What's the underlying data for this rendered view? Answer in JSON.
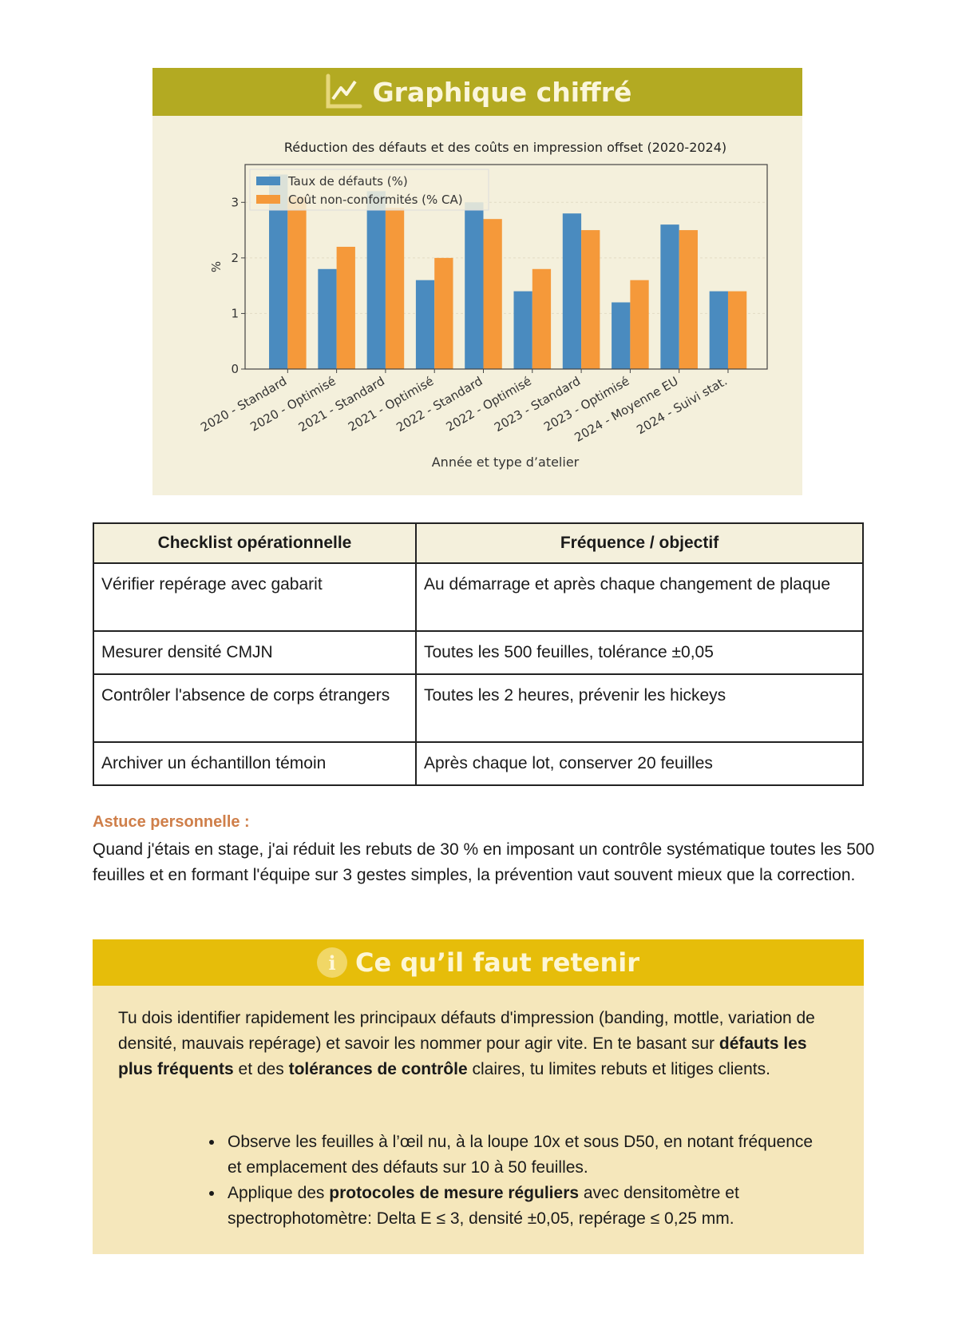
{
  "chart_section": {
    "header": "Graphique chiffré",
    "header_icon": "line-chart-icon",
    "header_color": "#b3aa22"
  },
  "chart_data": {
    "type": "bar",
    "title": "Réduction des défauts et des coûts en impression offset (2020-2024)",
    "xlabel": "Année et type d’atelier",
    "ylabel": "%",
    "ylim": [
      0,
      3.68
    ],
    "yticks": [
      "0",
      "1",
      "2",
      "3"
    ],
    "grid": true,
    "legend_position": "top-left",
    "categories": [
      "2020 - Standard",
      "2020 - Optimisé",
      "2021 - Standard",
      "2021 - Optimisé",
      "2022 - Standard",
      "2022 - Optimisé",
      "2023 - Standard",
      "2023 - Optimisé",
      "2024 - Moyenne EU",
      "2024 - Suivi stat."
    ],
    "series": [
      {
        "name": "Taux de défauts (%)",
        "color": "#4a8bbf",
        "values": [
          3.5,
          1.8,
          3.2,
          1.6,
          3.0,
          1.4,
          2.8,
          1.2,
          2.6,
          1.4
        ]
      },
      {
        "name": "Coût non-conformités (% CA)",
        "color": "#f5993a",
        "values": [
          3.1,
          2.2,
          2.9,
          2.0,
          2.7,
          1.8,
          2.5,
          1.6,
          2.5,
          1.4
        ]
      }
    ]
  },
  "table": {
    "headers": [
      "Checklist opérationnelle",
      "Fréquence / objectif"
    ],
    "rows": [
      [
        "Vérifier repérage avec gabarit",
        "Au démarrage et après chaque changement de plaque"
      ],
      [
        "Mesurer densité CMJN",
        "Toutes les 500 feuilles, tolérance ±0,05"
      ],
      [
        "Contrôler l'absence de corps étrangers",
        "Toutes les 2 heures, prévenir les hickeys"
      ],
      [
        "Archiver un échantillon témoin",
        "Après chaque lot, conserver 20 feuilles"
      ]
    ]
  },
  "tip": {
    "title": "Astuce personnelle :",
    "text": "Quand j'étais en stage, j'ai réduit les rebuts de 30 % en imposant un contrôle systématique toutes les 500 feuilles et en formant l'équipe sur 3 gestes simples, la prévention vaut souvent mieux que la correction."
  },
  "retenir": {
    "header": "Ce qu’il faut retenir",
    "header_icon": "info-icon",
    "icon_glyph": "i",
    "header_color": "#e6bd0a",
    "para": {
      "p1": "Tu dois identifier rapidement les principaux défauts d'impression (banding, mottle, variation de densité, mauvais repérage) et savoir les nommer pour agir vite. En te basant sur ",
      "b1": "défauts les plus fréquents",
      "p2": " et des ",
      "b2": "tolérances de contrôle",
      "p3": " claires, tu limites rebuts et litiges clients."
    },
    "bullets": [
      {
        "text": "Observe les feuilles à l’œil nu, à la loupe 10x et sous D50, en notant fréquence et emplacement des défauts sur 10 à 50 feuilles."
      },
      {
        "pre": "Applique des ",
        "bold": "protocoles de mesure réguliers",
        "post": " avec densitomètre et spectrophotomètre: Delta E ≤ 3, densité ±0,05, repérage ≤ 0,25 mm."
      }
    ]
  }
}
